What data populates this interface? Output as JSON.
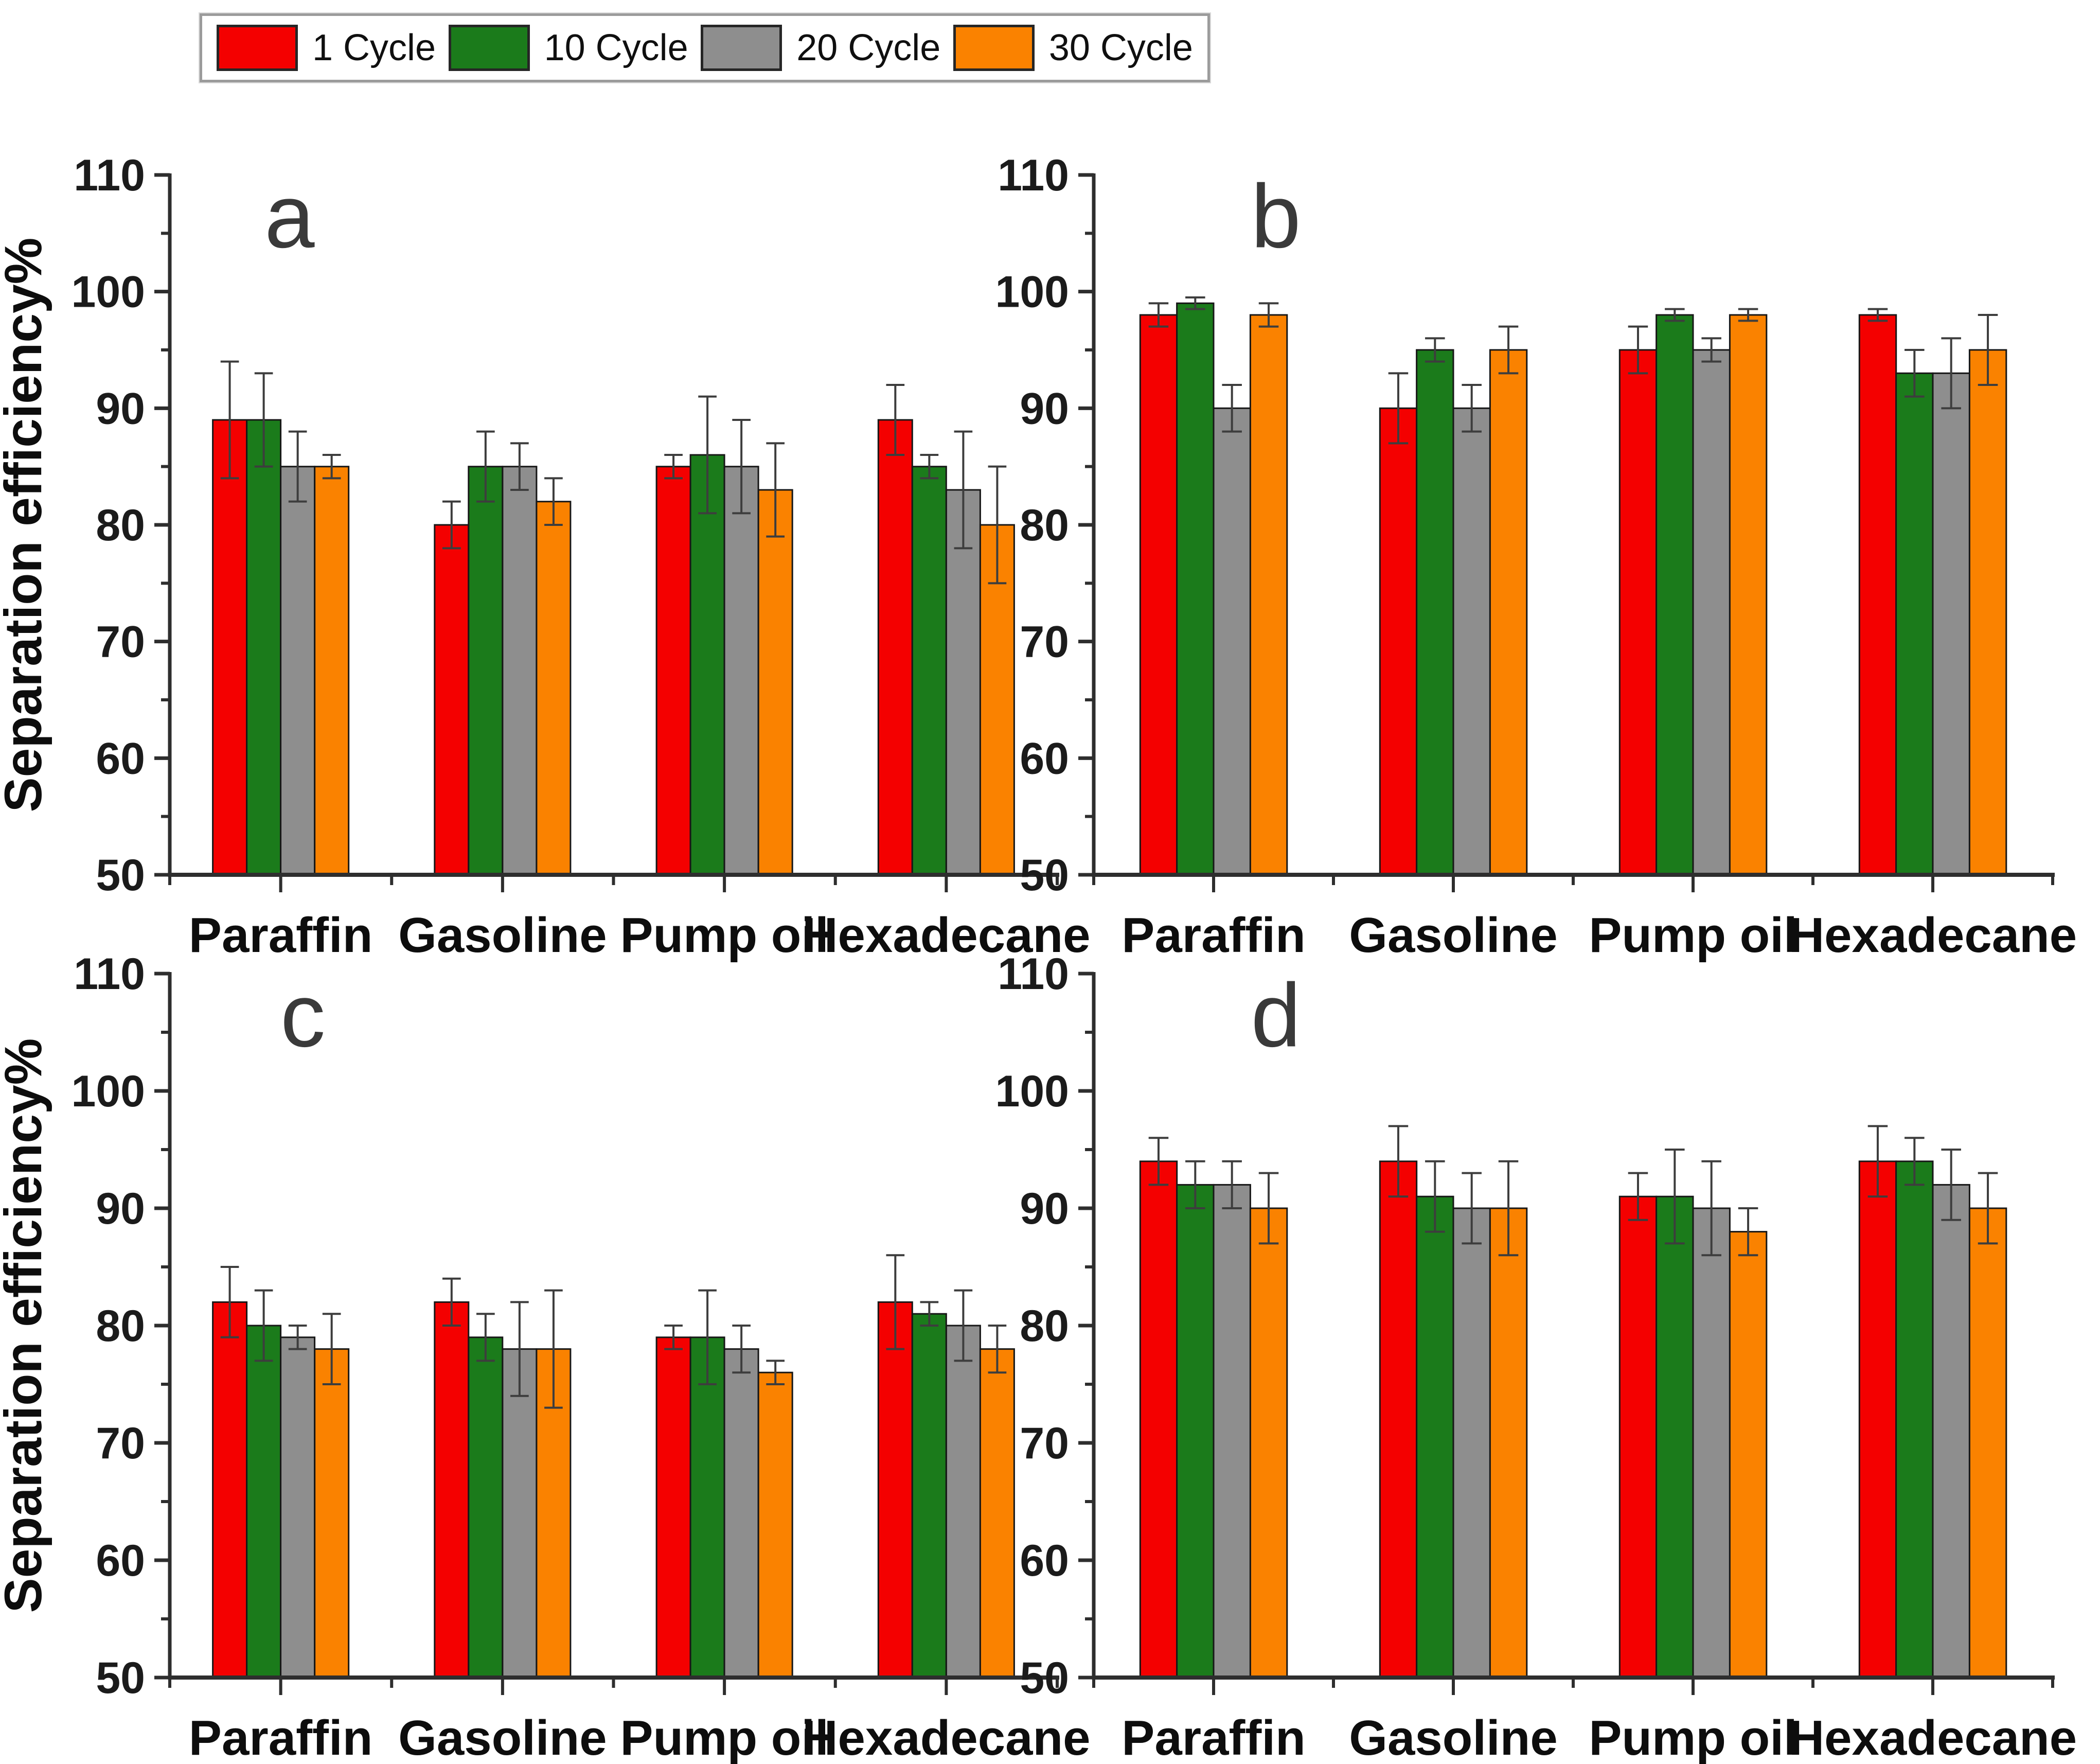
{
  "figure": {
    "legend": {
      "items": [
        {
          "label": "1 Cycle",
          "color": "#f40000"
        },
        {
          "label": "10 Cycle",
          "color": "#1b7b1b"
        },
        {
          "label": "20 Cycle",
          "color": "#8e8e8e"
        },
        {
          "label": "30 Cycle",
          "color": "#fa8200"
        }
      ]
    },
    "styles": {
      "bar_border": "#171717",
      "error_color": "#3d3d3d",
      "axis_color": "#2e2e2e",
      "tick_label_color": "#1b1b1b",
      "category_label_color": "#0d0d0d",
      "panel_letter_color": "#3a3a3a",
      "background": "#ffffff"
    }
  },
  "chart_data": [
    {
      "panel_label": "a",
      "type": "bar",
      "title": "",
      "xlabel": "",
      "ylabel": "Separation efficiency%",
      "ylim": [
        50,
        110
      ],
      "y_major_ticks": [
        50,
        60,
        70,
        80,
        90,
        100,
        110
      ],
      "y_minor_ticks": [
        55,
        65,
        75,
        85,
        95,
        105
      ],
      "grid": false,
      "legend_position": "top-outside-shared",
      "categories": [
        "Paraffin",
        "Gasoline",
        "Pump oil",
        "Hexadecane"
      ],
      "series": [
        {
          "name": "1 Cycle",
          "color": "#f40000",
          "values": [
            89,
            80,
            85,
            89
          ],
          "errors": [
            5,
            2,
            1,
            3
          ]
        },
        {
          "name": "10 Cycle",
          "color": "#1b7b1b",
          "values": [
            89,
            85,
            86,
            85
          ],
          "errors": [
            4,
            3,
            5,
            1
          ]
        },
        {
          "name": "20 Cycle",
          "color": "#8e8e8e",
          "values": [
            85,
            85,
            85,
            83
          ],
          "errors": [
            3,
            2,
            4,
            5
          ]
        },
        {
          "name": "30 Cycle",
          "color": "#fa8200",
          "values": [
            85,
            82,
            83,
            80
          ],
          "errors": [
            1,
            2,
            4,
            5
          ]
        }
      ]
    },
    {
      "panel_label": "b",
      "type": "bar",
      "title": "",
      "xlabel": "",
      "ylabel": "",
      "ylim": [
        50,
        110
      ],
      "y_major_ticks": [
        50,
        60,
        70,
        80,
        90,
        100,
        110
      ],
      "y_minor_ticks": [
        55,
        65,
        75,
        85,
        95,
        105
      ],
      "grid": false,
      "legend_position": "top-outside-shared",
      "categories": [
        "Paraffin",
        "Gasoline",
        "Pump oil",
        "Hexadecane"
      ],
      "series": [
        {
          "name": "1 Cycle",
          "color": "#f40000",
          "values": [
            98,
            90,
            95,
            98
          ],
          "errors": [
            1,
            3,
            2,
            0.5
          ]
        },
        {
          "name": "10 Cycle",
          "color": "#1b7b1b",
          "values": [
            99,
            95,
            98,
            93
          ],
          "errors": [
            0.5,
            1,
            0.5,
            2
          ]
        },
        {
          "name": "20 Cycle",
          "color": "#8e8e8e",
          "values": [
            90,
            90,
            95,
            93
          ],
          "errors": [
            2,
            2,
            1,
            3
          ]
        },
        {
          "name": "30 Cycle",
          "color": "#fa8200",
          "values": [
            98,
            95,
            98,
            95
          ],
          "errors": [
            1,
            2,
            0.5,
            3
          ]
        }
      ]
    },
    {
      "panel_label": "c",
      "type": "bar",
      "title": "",
      "xlabel": "",
      "ylabel": "Separation efficiency%",
      "ylim": [
        50,
        110
      ],
      "y_major_ticks": [
        50,
        60,
        70,
        80,
        90,
        100,
        110
      ],
      "y_minor_ticks": [
        55,
        65,
        75,
        85,
        95,
        105
      ],
      "grid": false,
      "legend_position": "top-outside-shared",
      "categories": [
        "Paraffin",
        "Gasoline",
        "Pump oil",
        "Hexadecane"
      ],
      "series": [
        {
          "name": "1 Cycle",
          "color": "#f40000",
          "values": [
            82,
            82,
            79,
            82
          ],
          "errors": [
            3,
            2,
            1,
            4
          ]
        },
        {
          "name": "10 Cycle",
          "color": "#1b7b1b",
          "values": [
            80,
            79,
            79,
            81
          ],
          "errors": [
            3,
            2,
            4,
            1
          ]
        },
        {
          "name": "20 Cycle",
          "color": "#8e8e8e",
          "values": [
            79,
            78,
            78,
            80
          ],
          "errors": [
            1,
            4,
            2,
            3
          ]
        },
        {
          "name": "30 Cycle",
          "color": "#fa8200",
          "values": [
            78,
            78,
            76,
            78
          ],
          "errors": [
            3,
            5,
            1,
            2
          ]
        }
      ]
    },
    {
      "panel_label": "d",
      "type": "bar",
      "title": "",
      "xlabel": "",
      "ylabel": "",
      "ylim": [
        50,
        110
      ],
      "y_major_ticks": [
        50,
        60,
        70,
        80,
        90,
        100,
        110
      ],
      "y_minor_ticks": [
        55,
        65,
        75,
        85,
        95,
        105
      ],
      "grid": false,
      "legend_position": "top-outside-shared",
      "categories": [
        "Paraffin",
        "Gasoline",
        "Pump oil",
        "Hexadecane"
      ],
      "series": [
        {
          "name": "1 Cycle",
          "color": "#f40000",
          "values": [
            94,
            94,
            91,
            94
          ],
          "errors": [
            2,
            3,
            2,
            3
          ]
        },
        {
          "name": "10 Cycle",
          "color": "#1b7b1b",
          "values": [
            92,
            91,
            91,
            94
          ],
          "errors": [
            2,
            3,
            4,
            2
          ]
        },
        {
          "name": "20 Cycle",
          "color": "#8e8e8e",
          "values": [
            92,
            90,
            90,
            92
          ],
          "errors": [
            2,
            3,
            4,
            3
          ]
        },
        {
          "name": "30 Cycle",
          "color": "#fa8200",
          "values": [
            90,
            90,
            88,
            90
          ],
          "errors": [
            3,
            4,
            2,
            3
          ]
        }
      ]
    }
  ]
}
